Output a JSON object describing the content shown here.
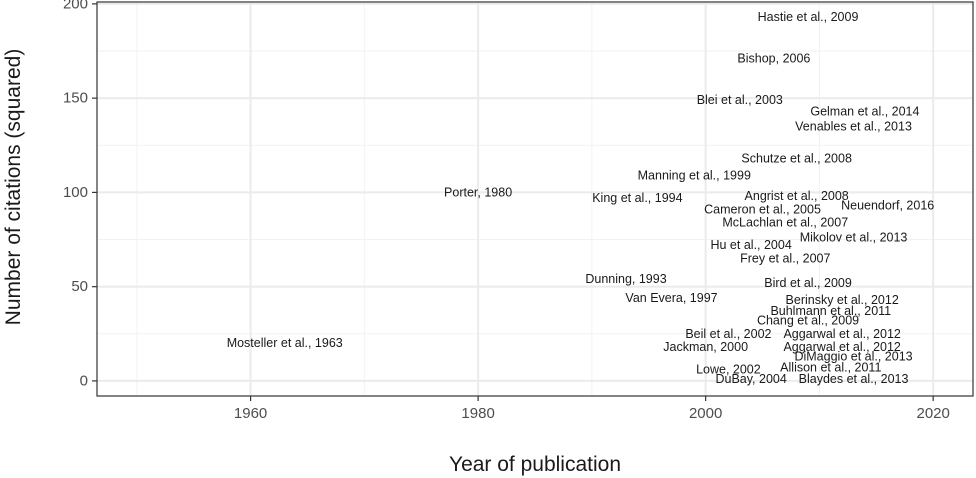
{
  "chart_data": {
    "type": "scatter",
    "marker": "text-labels",
    "xlabel": "Year of publication",
    "ylabel": "Number of citations (squared)",
    "xlim": [
      1946.5,
      2023.5
    ],
    "ylim": [
      -8,
      201
    ],
    "x_ticks": [
      1960,
      1980,
      2000,
      2020
    ],
    "y_ticks": [
      0,
      50,
      100,
      150,
      200
    ],
    "x_minor": [
      1950,
      1970,
      1990,
      2010
    ],
    "y_minor": [
      25,
      75,
      125,
      175
    ],
    "grid": true,
    "theme": "bw",
    "points": [
      {
        "label": "Hastie et al., 2009",
        "x": 2009,
        "y": 193
      },
      {
        "label": "Bishop, 2006",
        "x": 2006,
        "y": 171
      },
      {
        "label": "Blei et al., 2003",
        "x": 2003,
        "y": 149
      },
      {
        "label": "Gelman et al., 2014",
        "x": 2014,
        "y": 143
      },
      {
        "label": "Venables et al., 2013",
        "x": 2013,
        "y": 135
      },
      {
        "label": "Schutze et al., 2008",
        "x": 2008,
        "y": 118
      },
      {
        "label": "Manning et al., 1999",
        "x": 1999,
        "y": 109
      },
      {
        "label": "Porter, 1980",
        "x": 1980,
        "y": 100
      },
      {
        "label": "King et al., 1994",
        "x": 1994,
        "y": 97
      },
      {
        "label": "Angrist et al., 2008",
        "x": 2008,
        "y": 98
      },
      {
        "label": "Neuendorf, 2016",
        "x": 2016,
        "y": 93
      },
      {
        "label": "Cameron et al., 2005",
        "x": 2005,
        "y": 91
      },
      {
        "label": "McLachlan et al., 2007",
        "x": 2007,
        "y": 84
      },
      {
        "label": "Mikolov et al., 2013",
        "x": 2013,
        "y": 76
      },
      {
        "label": "Hu et al., 2004",
        "x": 2004,
        "y": 72
      },
      {
        "label": "Frey et al., 2007",
        "x": 2007,
        "y": 65
      },
      {
        "label": "Dunning, 1993",
        "x": 1993,
        "y": 54
      },
      {
        "label": "Bird et al., 2009",
        "x": 2009,
        "y": 52
      },
      {
        "label": "Van Evera, 1997",
        "x": 1997,
        "y": 44
      },
      {
        "label": "Berinsky et al., 2012",
        "x": 2012,
        "y": 43
      },
      {
        "label": "Buhlmann et al., 2011",
        "x": 2011,
        "y": 37
      },
      {
        "label": "Chang et al., 2009",
        "x": 2009,
        "y": 32
      },
      {
        "label": "Beil et al., 2002",
        "x": 2002,
        "y": 25
      },
      {
        "label": "Aggarwal et al., 2012",
        "x": 2012,
        "y": 25
      },
      {
        "label": "Mosteller et al., 1963",
        "x": 1963,
        "y": 20
      },
      {
        "label": "Jackman, 2000",
        "x": 2000,
        "y": 18
      },
      {
        "label": "Aggarwal et al., 2012",
        "x": 2012,
        "y": 18
      },
      {
        "label": "DiMaggio et al., 2013",
        "x": 2013,
        "y": 13
      },
      {
        "label": "Allison et al., 2011",
        "x": 2011,
        "y": 7
      },
      {
        "label": "Lowe, 2002",
        "x": 2002,
        "y": 6
      },
      {
        "label": "DuBay, 2004",
        "x": 2004,
        "y": 1
      },
      {
        "label": "Blaydes et al., 2013",
        "x": 2013,
        "y": 1
      }
    ]
  }
}
